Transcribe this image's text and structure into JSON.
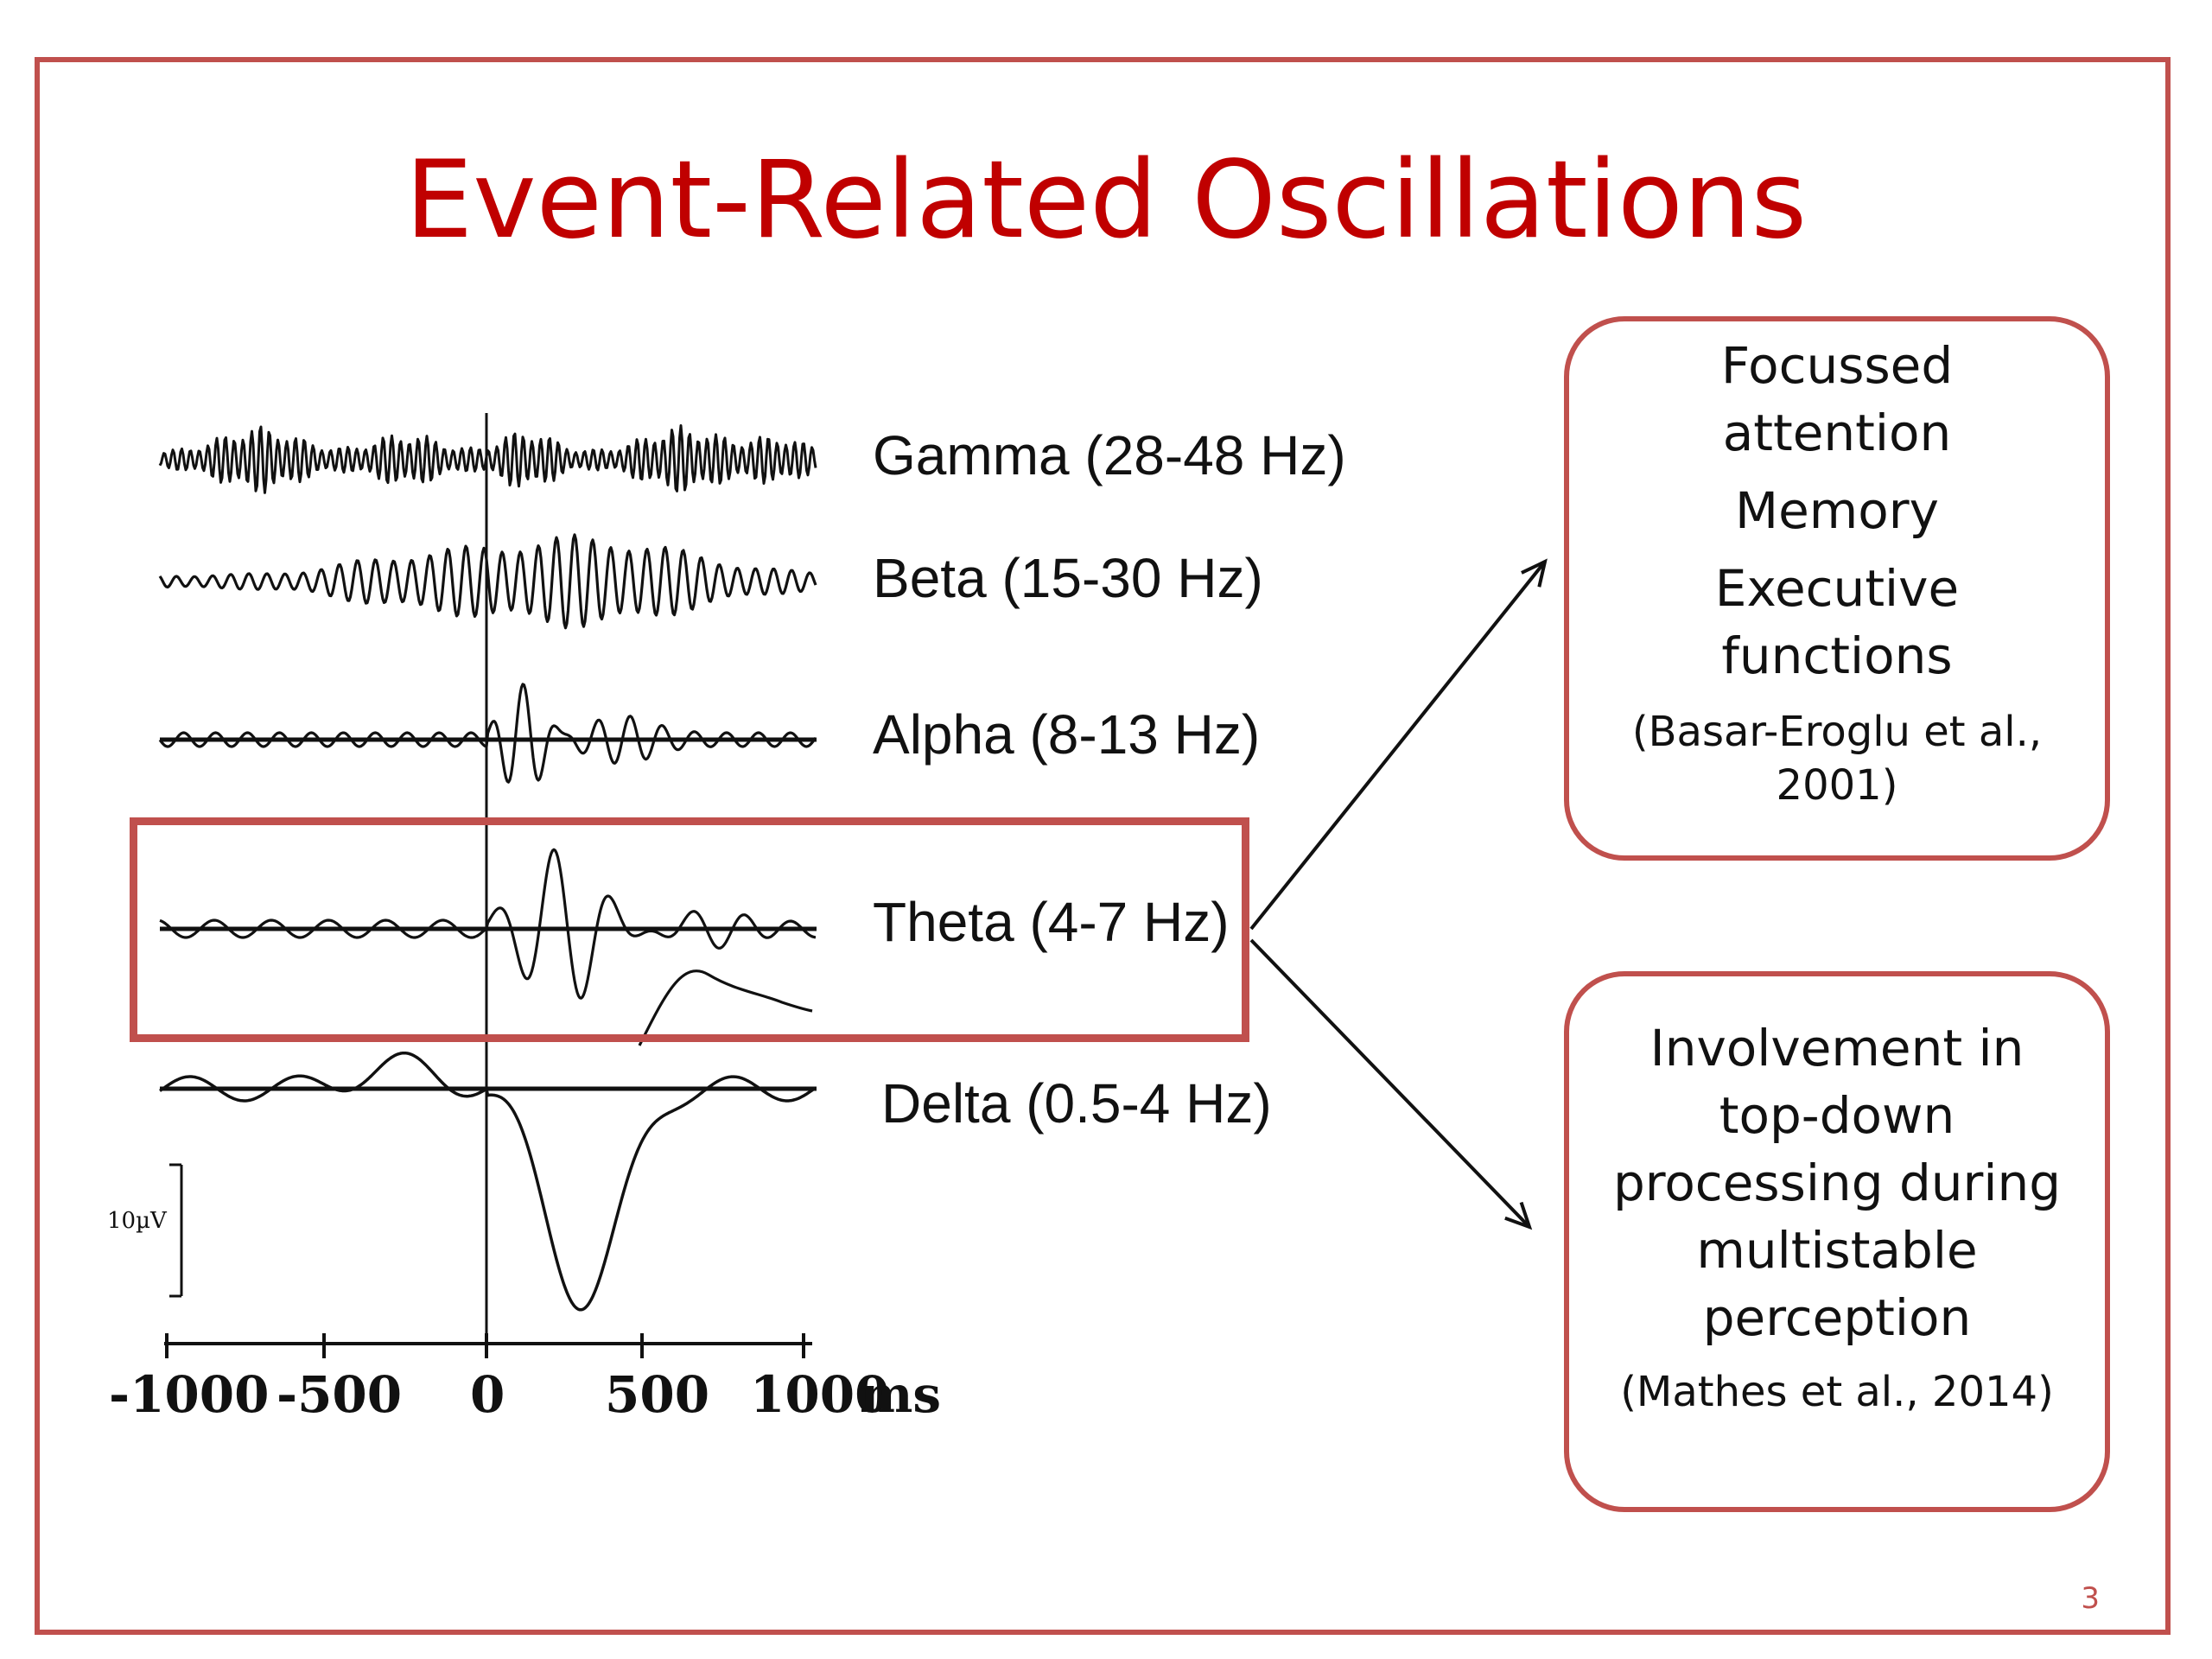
{
  "slide": {
    "title": "Event-Related Oscillations",
    "slide_number": "3"
  },
  "chart": {
    "bands": [
      {
        "id": "gamma",
        "label": "Gamma (28-48 Hz)"
      },
      {
        "id": "beta",
        "label": "Beta (15-30 Hz)"
      },
      {
        "id": "alpha",
        "label": "Alpha (8-13 Hz)"
      },
      {
        "id": "theta",
        "label": "Theta (4-7 Hz)"
      },
      {
        "id": "delta",
        "label": "Delta (0.5-4 Hz)"
      }
    ],
    "x_ticks": [
      "-1000",
      "-500",
      "0",
      "500",
      "1000"
    ],
    "x_unit": "ms",
    "scale_label": "10µV",
    "highlighted_band": "theta"
  },
  "boxes": {
    "top": {
      "items": [
        "Focussed attention",
        "Memory",
        "Executive functions"
      ],
      "reference": "(Basar-Eroglu et al., 2001)"
    },
    "bottom": {
      "items": [
        "Involvement in top-down processing during multistable perception"
      ],
      "reference": "(Mathes et al., 2014)"
    }
  },
  "colors": {
    "accent": "#c0504d",
    "title": "#c00000",
    "trace": "#111111"
  }
}
